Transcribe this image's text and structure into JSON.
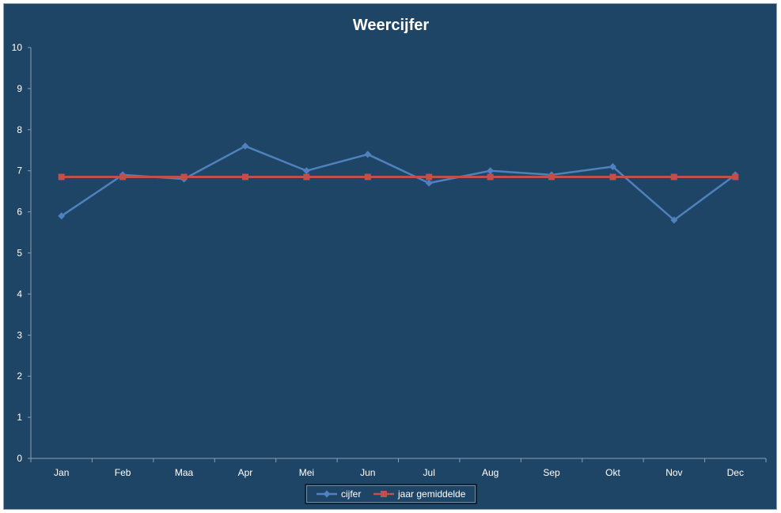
{
  "chart_data": {
    "type": "line",
    "title": "Weercijfer",
    "xlabel": "",
    "ylabel": "",
    "categories": [
      "Jan",
      "Feb",
      "Maa",
      "Apr",
      "Mei",
      "Jun",
      "Jul",
      "Aug",
      "Sep",
      "Okt",
      "Nov",
      "Dec"
    ],
    "ylim": [
      0,
      10
    ],
    "yticks": [
      0,
      1,
      2,
      3,
      4,
      5,
      6,
      7,
      8,
      9,
      10
    ],
    "grid": false,
    "legend_position": "bottom",
    "series": [
      {
        "name": "cijfer",
        "color": "#4f81bd",
        "marker": "diamond",
        "values": [
          5.9,
          6.9,
          6.8,
          7.6,
          7.0,
          7.4,
          6.7,
          7.0,
          6.9,
          7.1,
          5.8,
          6.9
        ]
      },
      {
        "name": "jaar gemiddelde",
        "color": "#c0504d",
        "marker": "square",
        "values": [
          6.85,
          6.85,
          6.85,
          6.85,
          6.85,
          6.85,
          6.85,
          6.85,
          6.85,
          6.85,
          6.85,
          6.85
        ]
      }
    ]
  }
}
